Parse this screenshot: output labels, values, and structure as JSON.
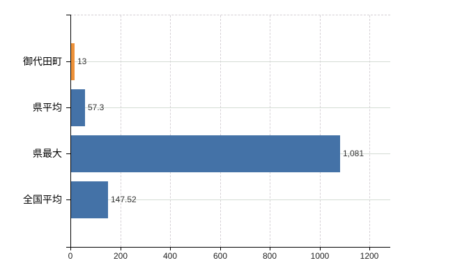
{
  "chart_data": {
    "type": "bar",
    "orientation": "horizontal",
    "title": "",
    "xlabel": "",
    "ylabel": "",
    "categories": [
      "御代田町",
      "県平均",
      "県最大",
      "全国平均"
    ],
    "values": [
      13,
      57.3,
      1081,
      147.52
    ],
    "value_labels": [
      "13",
      "57.3",
      "1,081",
      "147.52"
    ],
    "bar_colors": [
      "#ED9139",
      "#4472A7",
      "#4472A7",
      "#4472A7"
    ],
    "x_ticks": [
      0,
      200,
      400,
      600,
      800,
      1000,
      1200
    ],
    "x_tick_labels": [
      "0",
      "200",
      "400",
      "600",
      "800",
      "1000",
      "1200"
    ],
    "xlim": [
      0,
      1284
    ],
    "grid": {
      "vertical": "dashed",
      "horizontal": "solid"
    },
    "legend": "none",
    "colors": {
      "bar_blue": "#4472A7",
      "bar_orange": "#ED9139",
      "axis": "#000000",
      "grid_horizontal": "#d4dcd4",
      "grid_vertical": "#d5d0d5",
      "value_label": "#333333",
      "tick_label": "#222222",
      "background": "#ffffff"
    }
  }
}
